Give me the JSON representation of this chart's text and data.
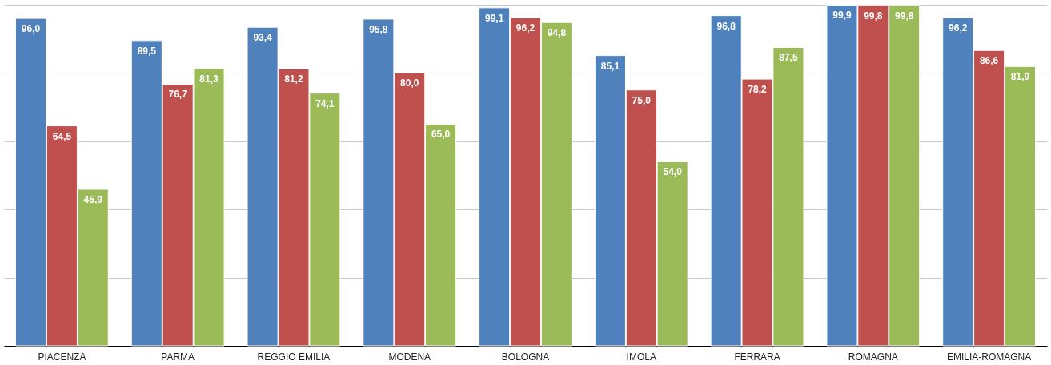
{
  "chart_data": {
    "type": "bar",
    "categories": [
      "PIACENZA",
      "PARMA",
      "REGGIO EMILIA",
      "MODENA",
      "BOLOGNA",
      "IMOLA",
      "FERRARA",
      "ROMAGNA",
      "EMILIA-ROMAGNA"
    ],
    "series": [
      {
        "color": "#4f81bd",
        "values": [
          96.0,
          89.5,
          93.4,
          95.8,
          99.1,
          85.1,
          96.8,
          99.9,
          96.2
        ],
        "value_labels": [
          "96,0",
          "89,5",
          "93,4",
          "95,8",
          "99,1",
          "85,1",
          "96,8",
          "99,9",
          "96,2"
        ]
      },
      {
        "color": "#c0504d",
        "values": [
          64.5,
          76.7,
          81.2,
          80.0,
          96.2,
          75.0,
          78.2,
          99.8,
          86.6
        ],
        "value_labels": [
          "64,5",
          "76,7",
          "81,2",
          "80,0",
          "96,2",
          "75,0",
          "78,2",
          "99,8",
          "86,6"
        ]
      },
      {
        "color": "#9bbb59",
        "values": [
          45.9,
          81.3,
          74.1,
          65.0,
          94.8,
          54.0,
          87.5,
          99.8,
          81.9
        ],
        "value_labels": [
          "45,9",
          "81,3",
          "74,1",
          "65,0",
          "94,8",
          "54,0",
          "87,5",
          "99,8",
          "81,9"
        ]
      }
    ],
    "tick_labels": "x",
    "grid": "y",
    "legend": false
  }
}
